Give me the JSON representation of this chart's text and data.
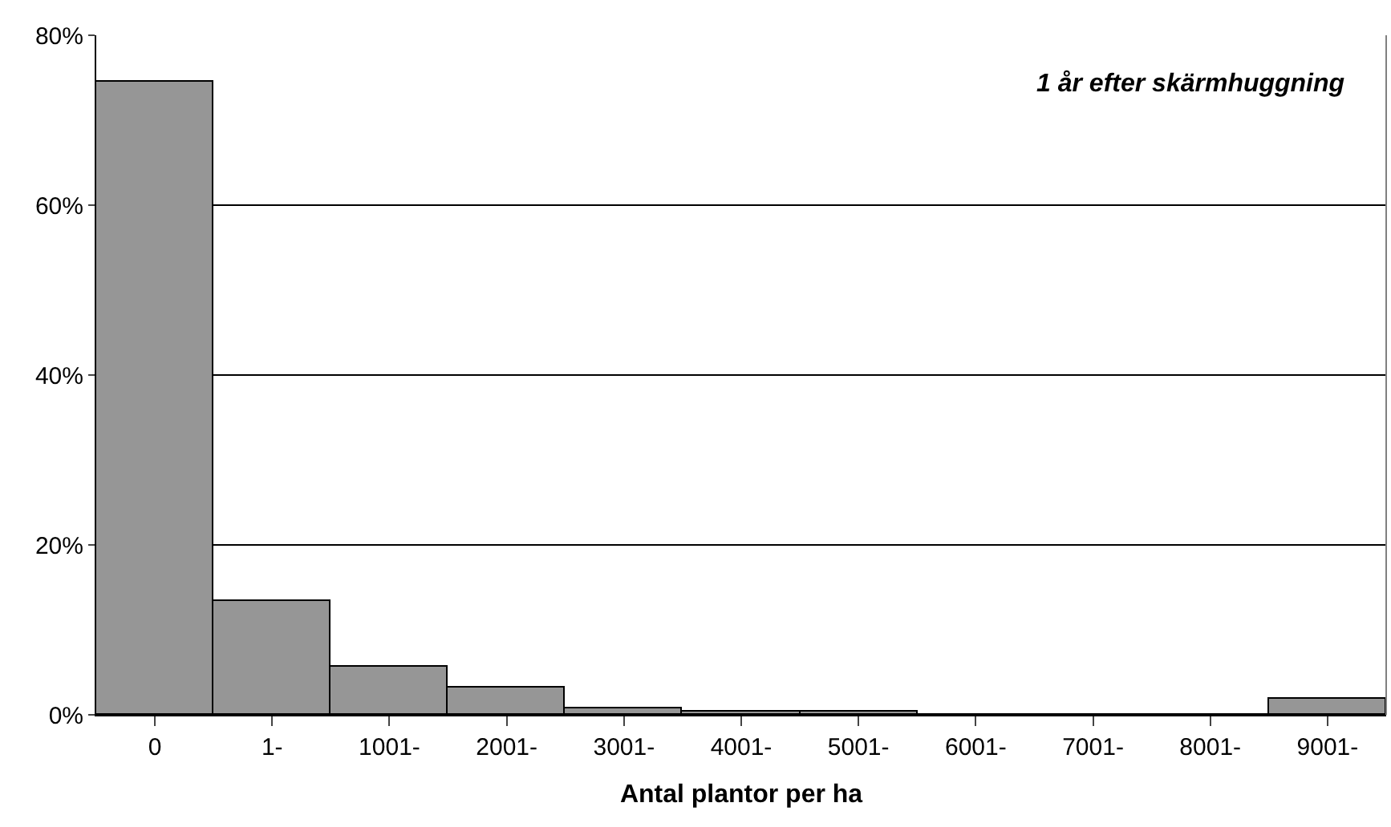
{
  "chart_data": {
    "type": "bar",
    "xlabel": "Antal plantor per ha",
    "annotations": [
      "1 år efter skärmhuggning"
    ],
    "categories": [
      "0",
      "1-",
      "1001-",
      "2001-",
      "3001-",
      "4001-",
      "5001-",
      "6001-",
      "7001-",
      "8001-",
      "9001-"
    ],
    "values": [
      74.5,
      13.4,
      5.6,
      3.3,
      0.8,
      0.4,
      0.4,
      0,
      0,
      0,
      1.8
    ],
    "color": "#969696",
    "ylim": [
      0,
      80
    ],
    "yticks": [
      {
        "value": 0,
        "label": "0%"
      },
      {
        "value": 20,
        "label": "20%"
      },
      {
        "value": 40,
        "label": "40%"
      },
      {
        "value": 60,
        "label": "60%"
      },
      {
        "value": 80,
        "label": "80%"
      }
    ],
    "grid": "y"
  }
}
